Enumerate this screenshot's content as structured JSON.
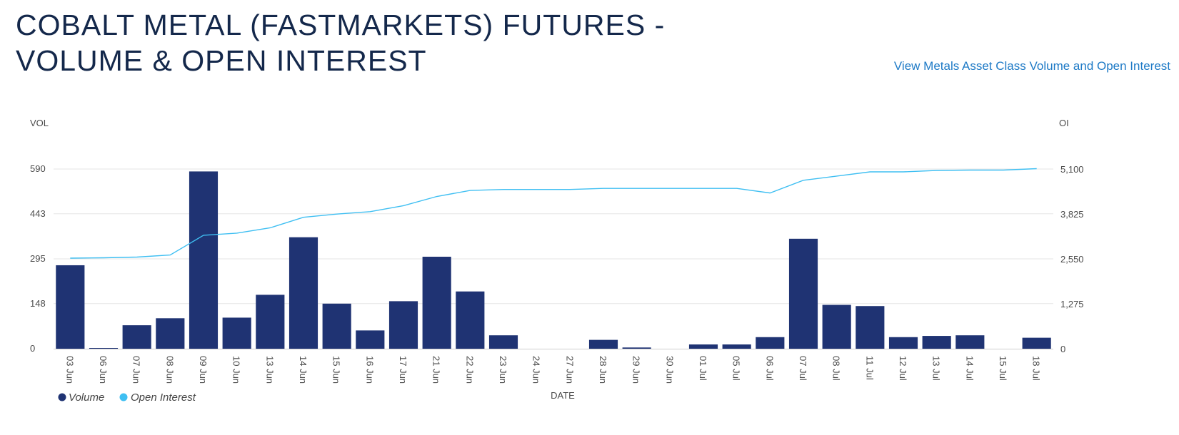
{
  "header": {
    "title": "COBALT METAL (FASTMARKETS) FUTURES - VOLUME & OPEN INTEREST",
    "link_label": "View Metals Asset Class Volume and Open Interest"
  },
  "colors": {
    "title": "#14284b",
    "link": "#1e7ac6",
    "volume_bar": "#1f3373",
    "open_interest_line": "#3fbff2",
    "grid": "#e6e6e6"
  },
  "chart_data": {
    "type": "bar",
    "categories": [
      "03 Jun",
      "06 Jun",
      "07 Jun",
      "08 Jun",
      "09 Jun",
      "10 Jun",
      "13 Jun",
      "14 Jun",
      "15 Jun",
      "16 Jun",
      "17 Jun",
      "21 Jun",
      "22 Jun",
      "23 Jun",
      "24 Jun",
      "27 Jun",
      "28 Jun",
      "29 Jun",
      "30 Jun",
      "01 Jul",
      "05 Jul",
      "06 Jul",
      "07 Jul",
      "08 Jul",
      "11 Jul",
      "12 Jul",
      "13 Jul",
      "14 Jul",
      "15 Jul",
      "18 Jul"
    ],
    "xlabel": "DATE",
    "ylabel_left": "VOL",
    "ylabel_right": "OI",
    "y_left": {
      "ticks": [
        "0",
        "148",
        "295",
        "443",
        "590"
      ],
      "tick_values": [
        0,
        148,
        295,
        443,
        590
      ],
      "ylim": [
        0,
        590
      ]
    },
    "y_right": {
      "ticks": [
        "0",
        "1,275",
        "2,550",
        "3,825",
        "5,100"
      ],
      "tick_values": [
        0,
        1275,
        2550,
        3825,
        5100
      ],
      "ylim": [
        0,
        5100
      ]
    },
    "grid": true,
    "legend_position": "bottom-left",
    "series": [
      {
        "name": "Volume",
        "type": "bar",
        "axis": "left",
        "values": [
          274,
          2,
          77,
          100,
          582,
          102,
          177,
          366,
          148,
          60,
          156,
          302,
          188,
          44,
          0,
          0,
          29,
          4,
          0,
          14,
          14,
          38,
          361,
          144,
          140,
          38,
          42,
          44,
          0,
          36
        ]
      },
      {
        "name": "Open Interest",
        "type": "line",
        "axis": "right",
        "values": [
          2570,
          2580,
          2600,
          2660,
          3220,
          3280,
          3430,
          3730,
          3820,
          3890,
          4060,
          4320,
          4490,
          4520,
          4520,
          4520,
          4550,
          4550,
          4550,
          4550,
          4550,
          4420,
          4780,
          4900,
          5020,
          5020,
          5060,
          5070,
          5070,
          5110
        ]
      }
    ]
  }
}
